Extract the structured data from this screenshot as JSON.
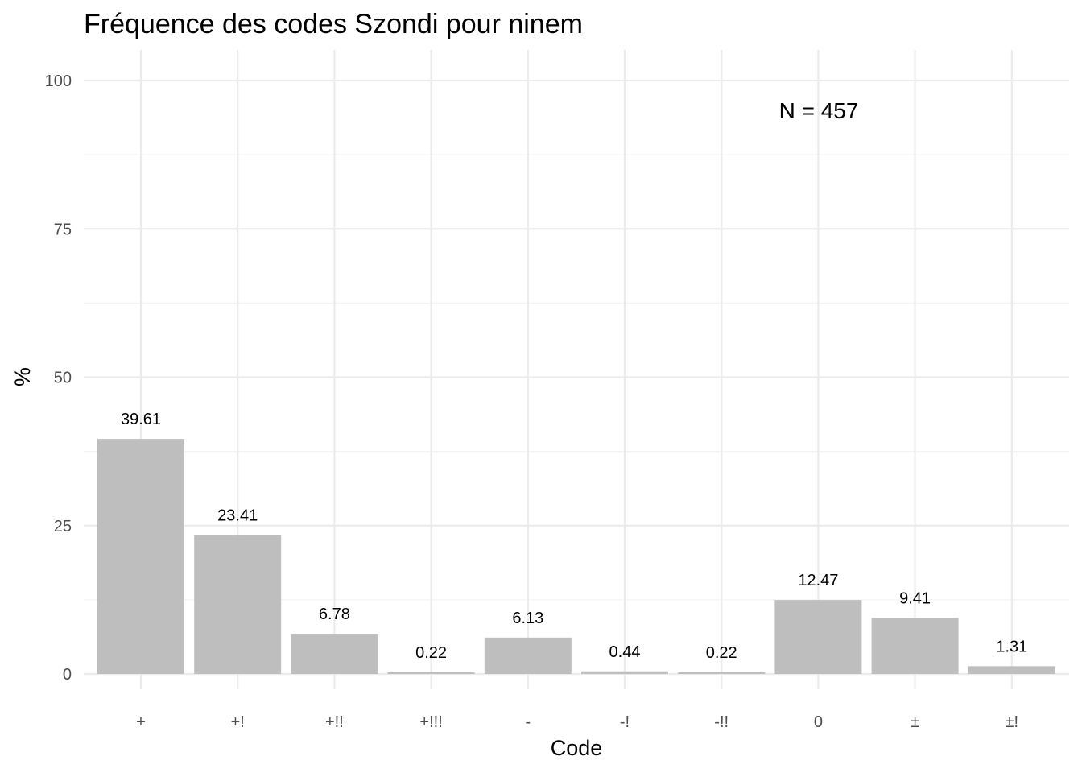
{
  "chart_data": {
    "type": "bar",
    "title": "Fréquence des codes Szondi pour ninem",
    "xlabel": "Code",
    "ylabel": "%",
    "categories": [
      "+",
      "+!",
      "+!!",
      "+!!!",
      "-",
      "-!",
      "-!!",
      "0",
      "±",
      "±!"
    ],
    "values": [
      39.61,
      23.41,
      6.78,
      0.22,
      6.13,
      0.44,
      0.22,
      12.47,
      9.41,
      1.31
    ],
    "data_labels": [
      "39.61",
      "23.41",
      "6.78",
      "0.22",
      "6.13",
      "0.44",
      "0.22",
      "12.47",
      "9.41",
      "1.31"
    ],
    "ylim": [
      0,
      100
    ],
    "yticks": [
      0,
      25,
      50,
      75,
      100
    ],
    "ytick_labels": [
      "0",
      "25",
      "50",
      "75",
      "100"
    ],
    "annotation": "N = 457",
    "grid": true,
    "legend": "none",
    "colors": {
      "bar": "#bebebe",
      "grid_major": "#ebebeb",
      "grid_minor": "#f3f3f3",
      "background": "#ffffff"
    }
  }
}
